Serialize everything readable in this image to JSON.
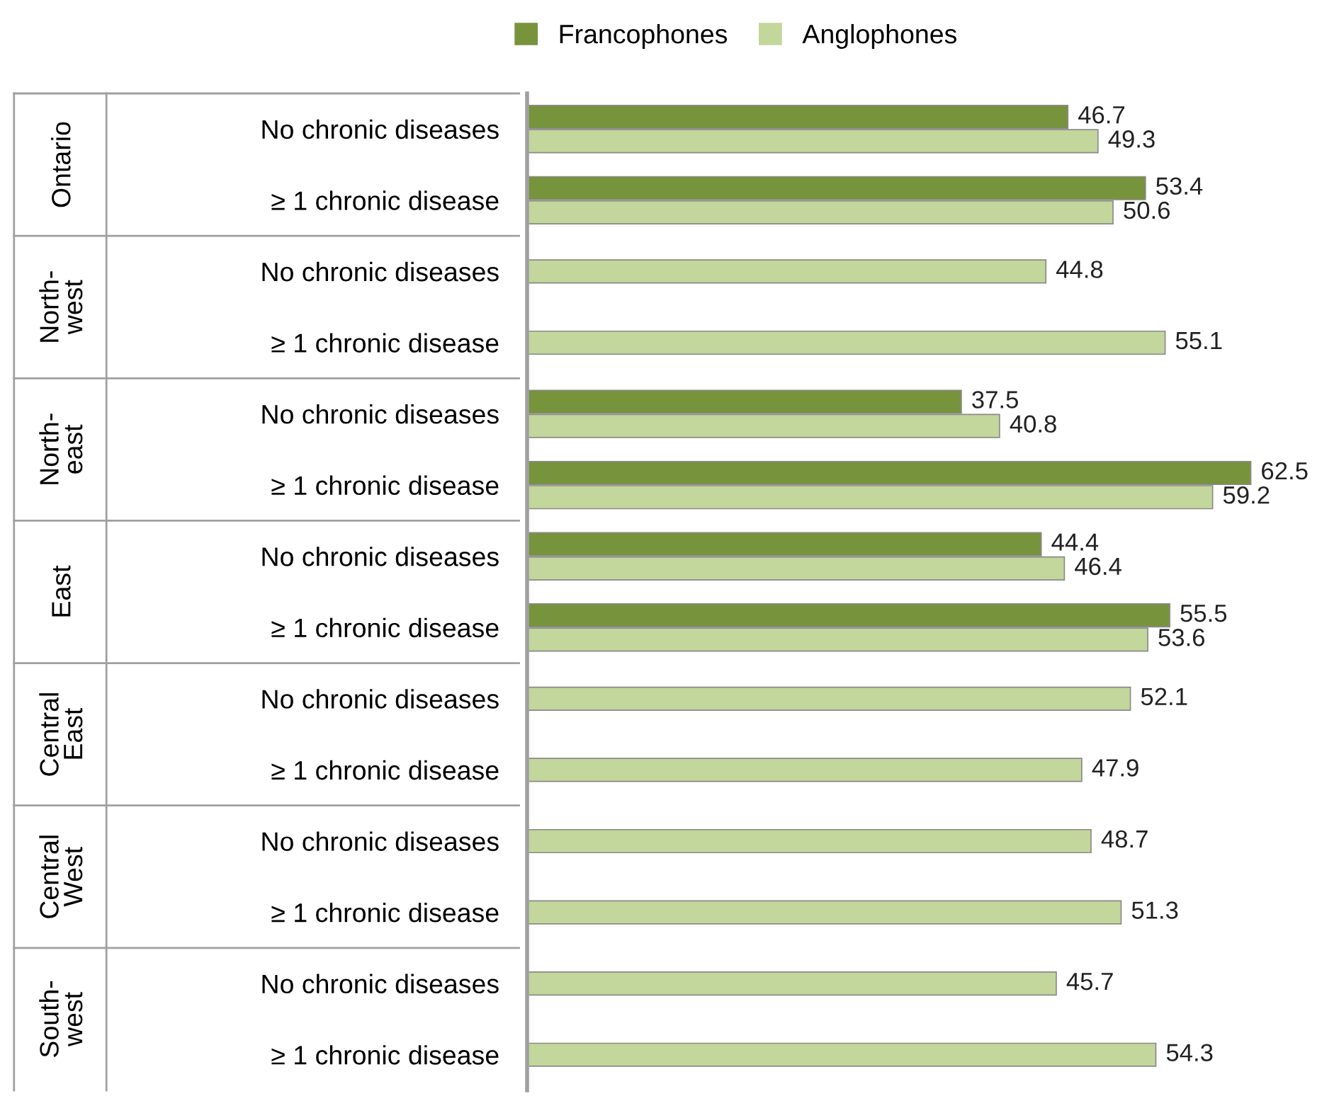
{
  "chart_data": {
    "type": "bar",
    "orientation": "horizontal",
    "categories": [
      "No chronic diseases",
      "≥ 1 chronic disease",
      "No chronic diseases",
      "≥ 1 chronic disease",
      "No chronic diseases",
      "≥ 1 chronic disease",
      "No chronic diseases",
      "≥ 1 chronic disease",
      "No chronic diseases",
      "≥ 1 chronic disease",
      "No chronic diseases",
      "≥ 1 chronic disease",
      "No chronic diseases",
      "≥ 1 chronic disease"
    ],
    "series": [
      {
        "name": "Francophones",
        "color": "#77933c",
        "values": [
          46.7,
          53.4,
          null,
          null,
          37.5,
          62.5,
          44.4,
          55.5,
          null,
          null,
          null,
          null,
          null,
          null
        ]
      },
      {
        "name": "Anglophones",
        "color": "#c3d69b",
        "values": [
          49.3,
          50.6,
          44.8,
          55.1,
          40.8,
          59.2,
          46.4,
          53.6,
          52.1,
          47.9,
          48.7,
          51.3,
          45.7,
          54.3
        ]
      }
    ],
    "annotations": [
      "Ontario",
      "North-\nwest",
      "North-\neast",
      "East",
      "Central\nEast",
      "Central\nWest",
      "South-\nwest"
    ],
    "tick_labels": "y",
    "data_labels": true,
    "legend": "top",
    "grid": false
  }
}
